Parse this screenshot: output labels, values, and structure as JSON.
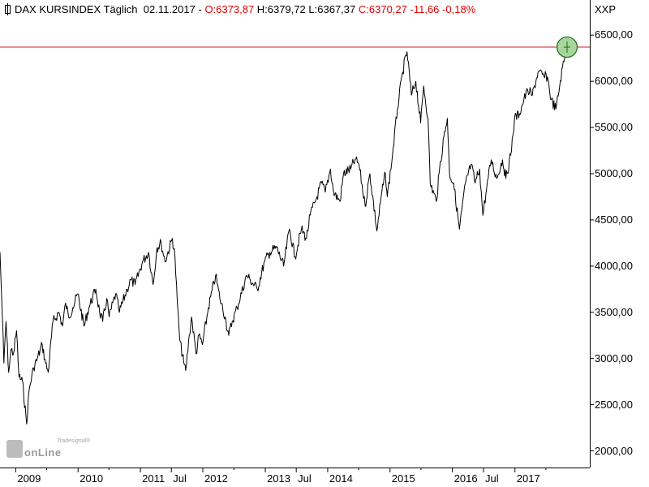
{
  "header": {
    "icon": "chart-window-icon",
    "name": "DAX KURSINDEX",
    "period": "Täglich",
    "date": "02.11.2017",
    "sep": "-",
    "open": "O:6373,87",
    "high": "H:6379,72",
    "low": "L:6367,37",
    "close": "C:6370,27",
    "change": "-11,66",
    "change_pct": "-0,18%"
  },
  "axis_symbol": "XXP",
  "logo": {
    "text": "onLine",
    "superscript": "Tradesignal®"
  },
  "colors": {
    "line": "#000000",
    "level": "#cc2020",
    "marker_fill": "#a6d69a",
    "marker_stroke": "#1d6b1d",
    "down": "#e00000",
    "axis": "#000000"
  },
  "chart_data": {
    "type": "line",
    "title": "DAX KURSINDEX Täglich",
    "ylim": [
      1820,
      6880
    ],
    "y_ticks": [
      2000,
      2500,
      3000,
      3500,
      4000,
      4500,
      5000,
      5500,
      6000,
      6500
    ],
    "y_tick_labels": [
      "2000,00",
      "2500,00",
      "3000,00",
      "3500,00",
      "4000,00",
      "4500,00",
      "5000,00",
      "5500,00",
      "6000,00",
      "6500,00"
    ],
    "x_range": [
      "2008-10-01",
      "2018-03-15"
    ],
    "x_ticks": [
      {
        "date": "2009-01-01",
        "label": "2009"
      },
      {
        "date": "2010-01-01",
        "label": "2010"
      },
      {
        "date": "2011-01-01",
        "label": "2011"
      },
      {
        "date": "2011-07-01",
        "label": "Jul"
      },
      {
        "date": "2012-01-01",
        "label": "2012"
      },
      {
        "date": "2013-01-01",
        "label": "2013"
      },
      {
        "date": "2013-07-01",
        "label": "Jul"
      },
      {
        "date": "2014-01-01",
        "label": "2014"
      },
      {
        "date": "2015-01-01",
        "label": "2015"
      },
      {
        "date": "2016-01-01",
        "label": "2016"
      },
      {
        "date": "2016-07-01",
        "label": "Jul"
      },
      {
        "date": "2017-01-01",
        "label": "2017"
      }
    ],
    "x_tick_minor": [
      "2009-07-01",
      "2010-07-01",
      "2012-07-01",
      "2014-07-01",
      "2015-07-01",
      "2017-07-01"
    ],
    "series": [
      {
        "values": [
          [
            "2008-10-01",
            4150
          ],
          [
            "2008-10-10",
            3700
          ],
          [
            "2008-10-24",
            2950
          ],
          [
            "2008-11-05",
            3400
          ],
          [
            "2008-11-21",
            2850
          ],
          [
            "2008-12-05",
            3100
          ],
          [
            "2008-12-19",
            3050
          ],
          [
            "2009-01-06",
            3300
          ],
          [
            "2009-01-20",
            2800
          ],
          [
            "2009-02-10",
            2750
          ],
          [
            "2009-03-06",
            2290
          ],
          [
            "2009-03-20",
            2650
          ],
          [
            "2009-04-15",
            2900
          ],
          [
            "2009-05-08",
            3000
          ],
          [
            "2009-06-05",
            3150
          ],
          [
            "2009-06-25",
            2950
          ],
          [
            "2009-07-10",
            2850
          ],
          [
            "2009-08-07",
            3400
          ],
          [
            "2009-09-11",
            3500
          ],
          [
            "2009-10-02",
            3350
          ],
          [
            "2009-10-20",
            3600
          ],
          [
            "2009-11-06",
            3450
          ],
          [
            "2009-12-01",
            3550
          ],
          [
            "2009-12-30",
            3700
          ],
          [
            "2010-02-05",
            3350
          ],
          [
            "2010-03-05",
            3550
          ],
          [
            "2010-04-15",
            3750
          ],
          [
            "2010-05-07",
            3500
          ],
          [
            "2010-05-25",
            3400
          ],
          [
            "2010-06-18",
            3650
          ],
          [
            "2010-07-02",
            3450
          ],
          [
            "2010-08-09",
            3700
          ],
          [
            "2010-08-31",
            3500
          ],
          [
            "2010-10-15",
            3750
          ],
          [
            "2010-11-05",
            3850
          ],
          [
            "2010-12-01",
            3800
          ],
          [
            "2011-01-14",
            4050
          ],
          [
            "2011-02-18",
            4150
          ],
          [
            "2011-03-16",
            3800
          ],
          [
            "2011-04-08",
            4200
          ],
          [
            "2011-05-02",
            4250
          ],
          [
            "2011-05-25",
            4050
          ],
          [
            "2011-07-07",
            4300
          ],
          [
            "2011-07-22",
            4100
          ],
          [
            "2011-08-05",
            3600
          ],
          [
            "2011-08-19",
            3200
          ],
          [
            "2011-09-12",
            2950
          ],
          [
            "2011-09-23",
            2870
          ],
          [
            "2011-10-14",
            3250
          ],
          [
            "2011-10-27",
            3450
          ],
          [
            "2011-11-23",
            3050
          ],
          [
            "2011-12-09",
            3250
          ],
          [
            "2011-12-30",
            3150
          ],
          [
            "2012-02-03",
            3550
          ],
          [
            "2012-03-16",
            3900
          ],
          [
            "2012-04-10",
            3650
          ],
          [
            "2012-05-11",
            3450
          ],
          [
            "2012-06-01",
            3250
          ],
          [
            "2012-06-21",
            3400
          ],
          [
            "2012-07-20",
            3550
          ],
          [
            "2012-09-14",
            3900
          ],
          [
            "2012-10-05",
            3850
          ],
          [
            "2012-11-15",
            3750
          ],
          [
            "2012-12-28",
            4050
          ],
          [
            "2013-01-28",
            4150
          ],
          [
            "2013-03-08",
            4200
          ],
          [
            "2013-04-18",
            4000
          ],
          [
            "2013-05-22",
            4400
          ],
          [
            "2013-06-24",
            4100
          ],
          [
            "2013-07-31",
            4400
          ],
          [
            "2013-08-30",
            4300
          ],
          [
            "2013-09-20",
            4550
          ],
          [
            "2013-10-30",
            4750
          ],
          [
            "2013-11-26",
            4900
          ],
          [
            "2013-12-18",
            4800
          ],
          [
            "2014-01-17",
            5050
          ],
          [
            "2014-02-04",
            4800
          ],
          [
            "2014-03-14",
            4700
          ],
          [
            "2014-04-04",
            5000
          ],
          [
            "2014-05-15",
            5050
          ],
          [
            "2014-06-10",
            5150
          ],
          [
            "2014-07-03",
            5100
          ],
          [
            "2014-08-08",
            4650
          ],
          [
            "2014-09-05",
            5000
          ],
          [
            "2014-10-16",
            4380
          ],
          [
            "2014-11-14",
            4800
          ],
          [
            "2014-12-05",
            5000
          ],
          [
            "2014-12-16",
            4750
          ],
          [
            "2015-01-15",
            5200
          ],
          [
            "2015-02-13",
            5700
          ],
          [
            "2015-03-16",
            6100
          ],
          [
            "2015-04-10",
            6320
          ],
          [
            "2015-05-06",
            5850
          ],
          [
            "2015-06-01",
            6000
          ],
          [
            "2015-06-29",
            5550
          ],
          [
            "2015-07-17",
            5950
          ],
          [
            "2015-08-11",
            5600
          ],
          [
            "2015-08-24",
            4900
          ],
          [
            "2015-09-29",
            4700
          ],
          [
            "2015-10-15",
            5000
          ],
          [
            "2015-11-12",
            5400
          ],
          [
            "2015-12-02",
            5600
          ],
          [
            "2015-12-15",
            5000
          ],
          [
            "2016-01-08",
            4900
          ],
          [
            "2016-02-11",
            4400
          ],
          [
            "2016-03-18",
            4900
          ],
          [
            "2016-04-19",
            5100
          ],
          [
            "2016-05-13",
            4900
          ],
          [
            "2016-06-08",
            5050
          ],
          [
            "2016-06-27",
            4550
          ],
          [
            "2016-07-20",
            4850
          ],
          [
            "2016-08-15",
            5150
          ],
          [
            "2016-09-16",
            4950
          ],
          [
            "2016-10-20",
            5150
          ],
          [
            "2016-11-09",
            4950
          ],
          [
            "2016-12-07",
            5200
          ],
          [
            "2016-12-30",
            5600
          ],
          [
            "2017-01-27",
            5650
          ],
          [
            "2017-02-22",
            5800
          ],
          [
            "2017-03-17",
            5900
          ],
          [
            "2017-04-13",
            5850
          ],
          [
            "2017-05-16",
            6100
          ],
          [
            "2017-06-20",
            6050
          ],
          [
            "2017-07-10",
            6050
          ],
          [
            "2017-08-01",
            5800
          ],
          [
            "2017-08-29",
            5700
          ],
          [
            "2017-09-20",
            5950
          ],
          [
            "2017-10-06",
            6150
          ],
          [
            "2017-10-25",
            6280
          ],
          [
            "2017-11-02",
            6370
          ]
        ]
      }
    ],
    "reference_line": {
      "y": 6370
    },
    "marker": {
      "date": "2017-11-02",
      "value": 6370
    }
  }
}
